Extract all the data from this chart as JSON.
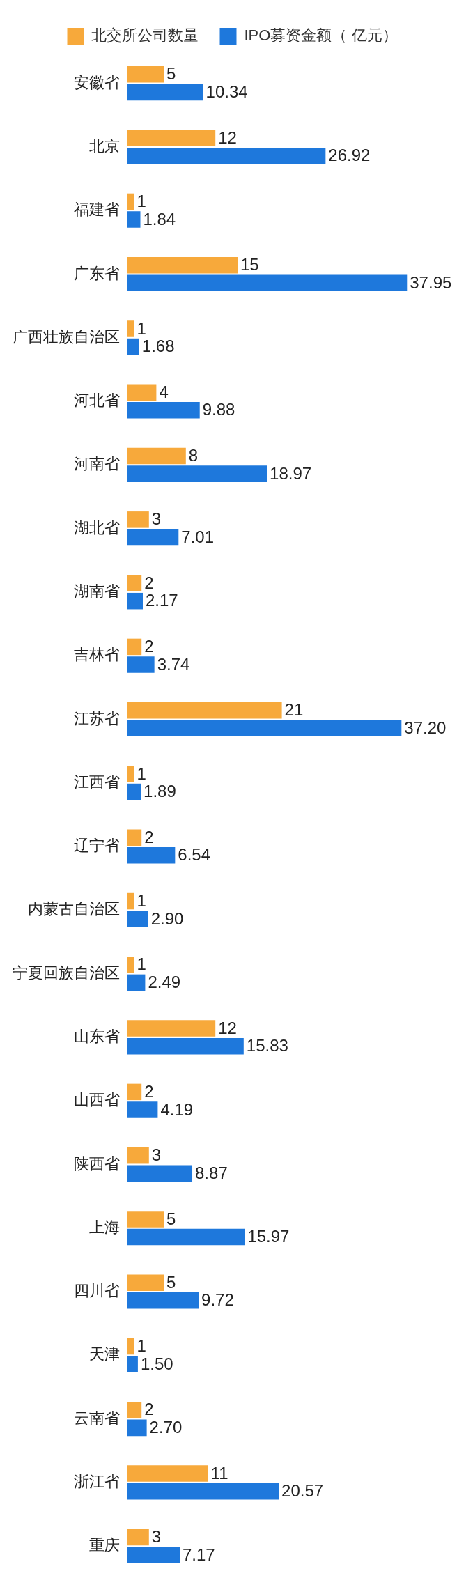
{
  "chart_data": {
    "type": "bar",
    "orientation": "horizontal",
    "legend": "top",
    "grid": false,
    "categories": [
      "安徽省",
      "北京",
      "福建省",
      "广东省",
      "广西壮族自治区",
      "河北省",
      "河南省",
      "湖北省",
      "湖南省",
      "吉林省",
      "江苏省",
      "江西省",
      "辽宁省",
      "内蒙古自治区",
      "宁夏回族自治区",
      "山东省",
      "山西省",
      "陕西省",
      "上海",
      "四川省",
      "天津",
      "云南省",
      "浙江省",
      "重庆"
    ],
    "series": [
      {
        "name": "北交所公司数量",
        "color": "#f7a93b",
        "values": [
          5,
          12,
          1,
          15,
          1,
          4,
          8,
          3,
          2,
          2,
          21,
          1,
          2,
          1,
          1,
          12,
          2,
          3,
          5,
          5,
          1,
          2,
          11,
          3
        ],
        "value_labels": [
          "5",
          "12",
          "1",
          "15",
          "1",
          "4",
          "8",
          "3",
          "2",
          "2",
          "21",
          "1",
          "2",
          "1",
          "1",
          "12",
          "2",
          "3",
          "5",
          "5",
          "1",
          "2",
          "11",
          "3"
        ]
      },
      {
        "name": "IPO募资金额（ 亿元）",
        "color": "#1e78dc",
        "values": [
          10.34,
          26.92,
          1.84,
          37.95,
          1.68,
          9.88,
          18.97,
          7.01,
          2.17,
          3.74,
          37.2,
          1.89,
          6.54,
          2.9,
          2.49,
          15.83,
          4.19,
          8.87,
          15.97,
          9.72,
          1.5,
          2.7,
          20.57,
          7.17
        ],
        "value_labels": [
          "10.34",
          "26.92",
          "1.84",
          "37.95",
          "1.68",
          "9.88",
          "18.97",
          "7.01",
          "2.17",
          "3.74",
          "37.20",
          "1.89",
          "6.54",
          "2.90",
          "2.49",
          "15.83",
          "4.19",
          "8.87",
          "15.97",
          "9.72",
          "1.50",
          "2.70",
          "20.57",
          "7.17"
        ]
      }
    ]
  }
}
